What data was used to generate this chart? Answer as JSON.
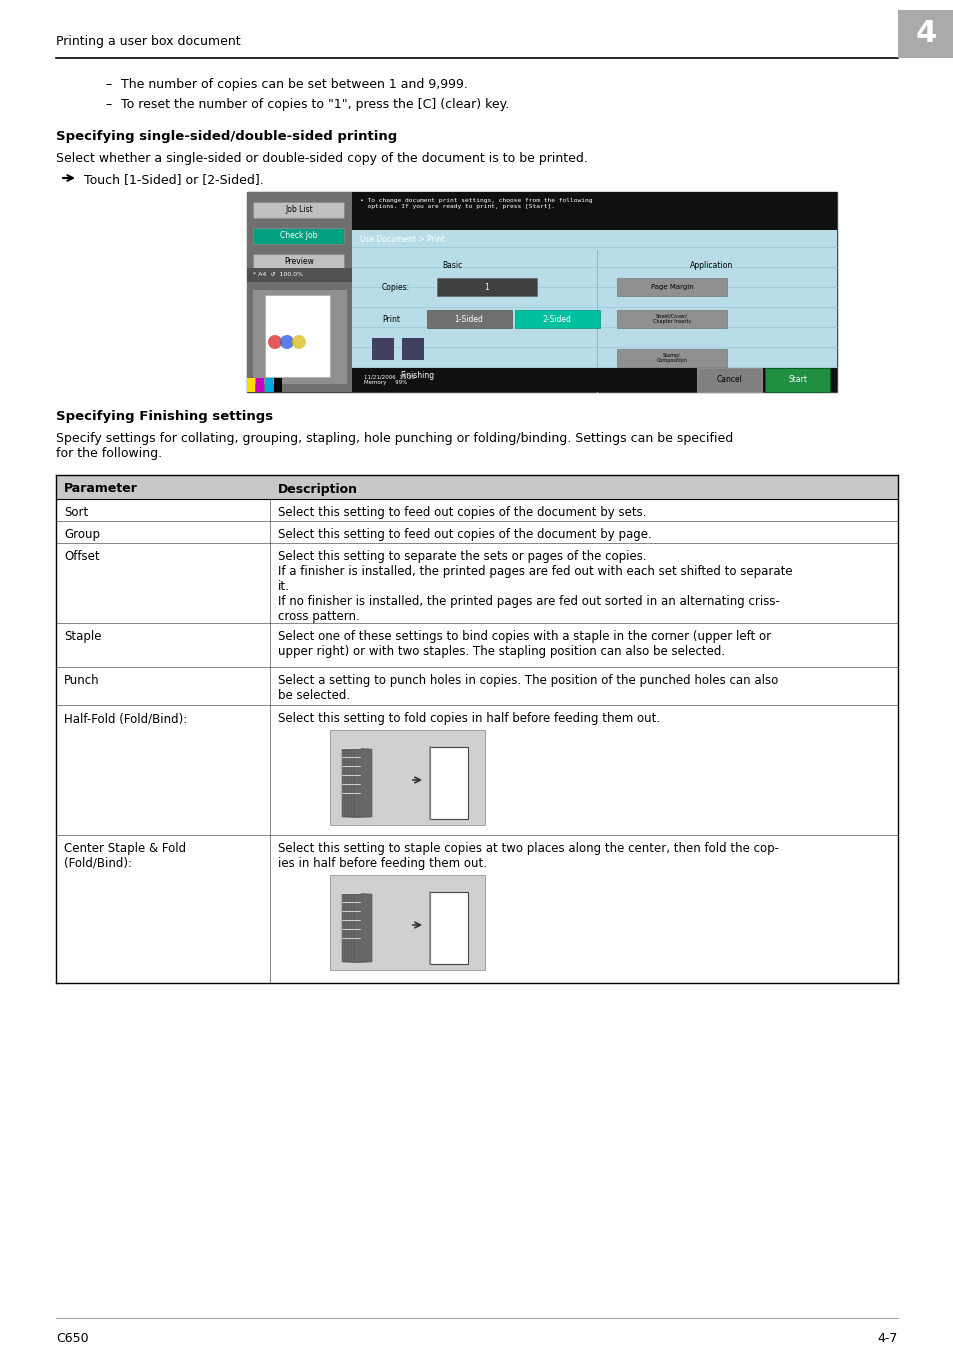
{
  "page_header_text": "Printing a user box document",
  "page_number": "4",
  "footer_left": "C650",
  "footer_right": "4-7",
  "bullet_lines": [
    "The number of copies can be set between 1 and 9,999.",
    "To reset the number of copies to \"1\", press the [C] (clear) key."
  ],
  "section1_title": "Specifying single-sided/double-sided printing",
  "section1_body": "Select whether a single-sided or double-sided copy of the document is to be printed.",
  "section1_arrow": "Touch [1-Sided] or [2-Sided].",
  "section2_title": "Specifying Finishing settings",
  "section2_body": "Specify settings for collating, grouping, stapling, hole punching or folding/binding. Settings can be specified\nfor the following.",
  "table_headers": [
    "Parameter",
    "Description"
  ],
  "bg_color": "#ffffff",
  "header_line_color": "#000000",
  "table_header_bg": "#c8c8c8",
  "table_border_color": "#555555",
  "text_color": "#000000"
}
